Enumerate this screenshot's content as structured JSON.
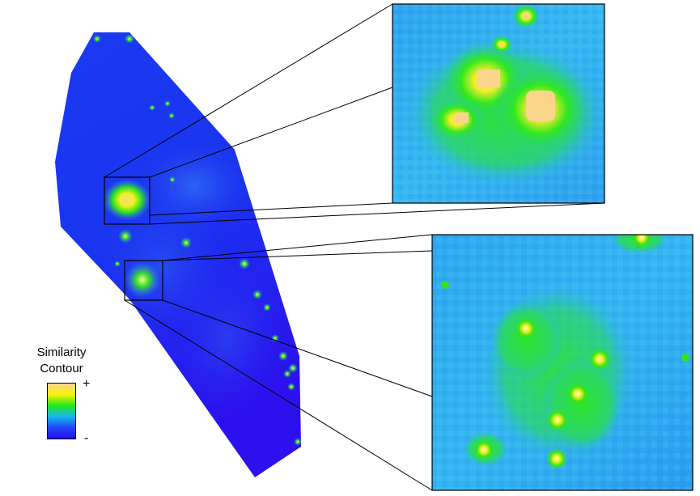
{
  "legend": {
    "title_line1": "Similarity",
    "title_line2": "Contour",
    "max_mark": "+",
    "min_mark": "-",
    "gradient": [
      "#fbd58b",
      "#f7f20a",
      "#20e81a",
      "#16b6f2",
      "#1e47f5",
      "#2a0cf0"
    ]
  },
  "colors": {
    "background": "#ffffff",
    "low": "#1e2ff0",
    "mid": "#2aa8f2",
    "high": "#22e018",
    "peak": "#fbd58b",
    "frame": "#000000"
  }
}
